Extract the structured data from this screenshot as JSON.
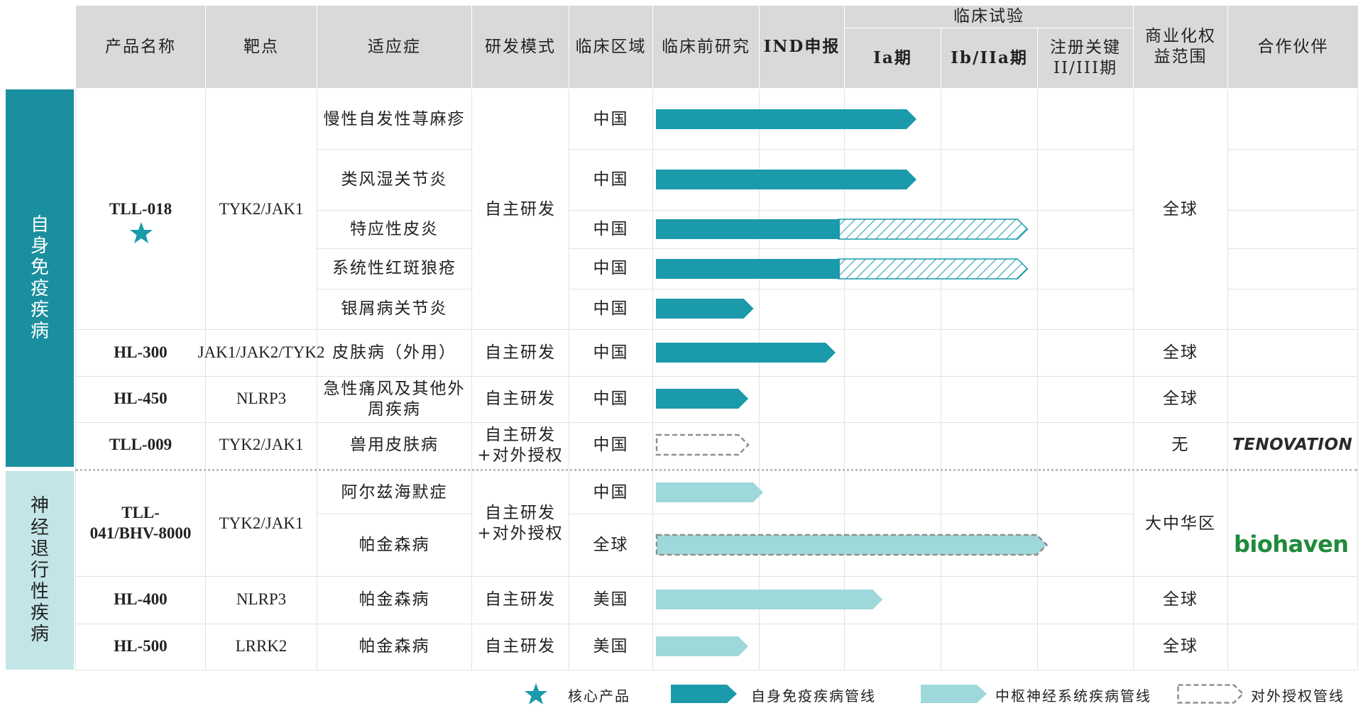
{
  "header": {
    "product": "产品名称",
    "target": "靶点",
    "indication": "适应症",
    "mode": "研发模式",
    "region": "临床区域",
    "preclinical": "临床前研究",
    "ind": "IND申报",
    "clinical_trials": "临床试验",
    "phase1a": "Ia期",
    "phase1b2a": "Ib/IIa期",
    "registrational": "注册关键II/III期",
    "rights": "商业化权益范围",
    "partner": "合作伙伴"
  },
  "categories": {
    "autoimmune": "自身免疫疾病",
    "neuro": "神经退行性疾病"
  },
  "products": {
    "tll018": {
      "name": "TLL-018",
      "target": "TYK2/JAK1",
      "mode": "自主研发",
      "rights": "全球"
    },
    "hl300": {
      "name": "HL-300",
      "target": "JAK1/JAK2/TYK2",
      "mode": "自主研发",
      "rights": "全球"
    },
    "hl450": {
      "name": "HL-450",
      "target": "NLRP3",
      "mode": "自主研发",
      "rights": "全球"
    },
    "tll009": {
      "name": "TLL-009",
      "target": "TYK2/JAK1",
      "mode": "自主研发+对外授权",
      "rights": "无",
      "partner": "TENOVATION"
    },
    "tll041": {
      "name": "TLL-041/BHV-8000",
      "target": "TYK2/JAK1",
      "mode": "自主研发+对外授权",
      "rights": "大中华区",
      "partner": "biohaven"
    },
    "hl400": {
      "name": "HL-400",
      "target": "NLRP3",
      "mode": "自主研发",
      "rights": "全球"
    },
    "hl500": {
      "name": "HL-500",
      "target": "LRRK2",
      "mode": "自主研发",
      "rights": "全球"
    }
  },
  "rows": [
    {
      "indication": "慢性自发性荨麻疹",
      "region": "中国",
      "bar_type": "autoimmune",
      "solid_end": 2.75,
      "hatch_end": null
    },
    {
      "indication": "类风湿关节炎",
      "region": "中国",
      "bar_type": "autoimmune",
      "solid_end": 2.75,
      "hatch_end": null
    },
    {
      "indication": "特应性皮炎",
      "region": "中国",
      "bar_type": "autoimmune",
      "solid_end": 1.95,
      "hatch_end": 3.9
    },
    {
      "indication": "系统性红斑狼疮",
      "region": "中国",
      "bar_type": "autoimmune",
      "solid_end": 1.95,
      "hatch_end": 3.9
    },
    {
      "indication": "银屑病关节炎",
      "region": "中国",
      "bar_type": "autoimmune",
      "solid_end": 0.95,
      "hatch_end": null
    },
    {
      "indication": "皮肤病（外用）",
      "region": "中国",
      "bar_type": "autoimmune",
      "solid_end": 1.9,
      "hatch_end": null
    },
    {
      "indication": "急性痛风及其他外周疾病",
      "region": "中国",
      "bar_type": "autoimmune",
      "solid_end": 0.9,
      "hatch_end": null
    },
    {
      "indication": "兽用皮肤病",
      "region": "中国",
      "bar_type": "outlicensed",
      "solid_end": 0.9,
      "hatch_end": null
    },
    {
      "indication": "阿尔兹海默症",
      "region": "中国",
      "bar_type": "neuro",
      "solid_end": 1.05,
      "hatch_end": null
    },
    {
      "indication": "帕金森病",
      "region": "全球",
      "bar_type": "neuro_outlicensed",
      "solid_end": 4.1,
      "hatch_end": null
    },
    {
      "indication": "帕金森病",
      "region": "美国",
      "bar_type": "neuro",
      "solid_end": 2.4,
      "hatch_end": null
    },
    {
      "indication": "帕金森病",
      "region": "美国",
      "bar_type": "neuro",
      "solid_end": 0.9,
      "hatch_end": null
    }
  ],
  "legend": {
    "core": "核心产品",
    "autoimmune": "自身免疫疾病管线",
    "neuro": "中枢神经系统疾病管线",
    "outlicensed": "对外授权管线"
  },
  "colors": {
    "autoimmune": "#1a9aaa",
    "neuro": "#9fd8da",
    "header": "#d9d9d9",
    "outline": "#8f8f8f",
    "tenovation": "#d2421e",
    "biohaven": "#1f8a3c"
  }
}
